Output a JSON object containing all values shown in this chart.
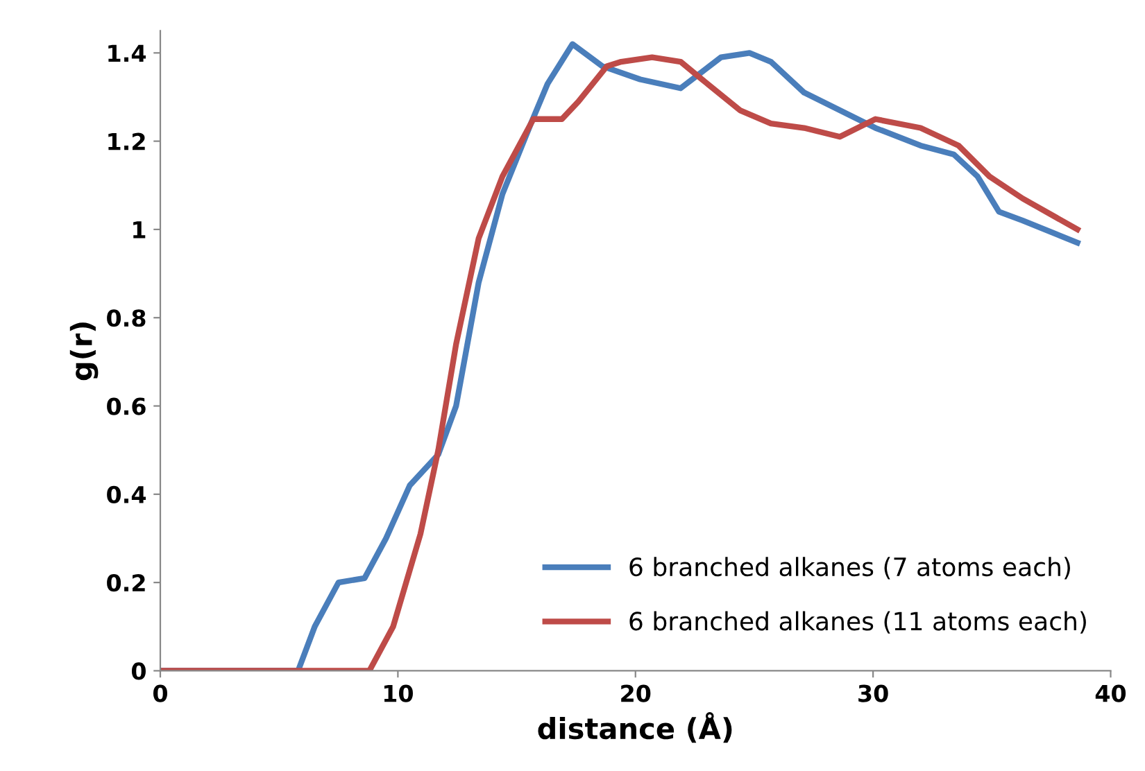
{
  "chart_data": {
    "type": "line",
    "xlabel": "distance (Å)",
    "ylabel": "g(r)",
    "xlim": [
      0,
      40
    ],
    "xticks": [
      0,
      10,
      20,
      30,
      40
    ],
    "ylim": [
      0,
      1.45
    ],
    "yticks": [
      0,
      0.2,
      0.4,
      0.6,
      0.8,
      1,
      1.2,
      1.4
    ],
    "grid": false,
    "legend": "bottom right",
    "marker": "none",
    "line_style": "solid",
    "series": [
      {
        "name": "6 branched alkanes (7 atoms each)",
        "color": "#4a7ebb",
        "x": [
          0,
          5.8,
          6.5,
          7.5,
          8.6,
          9.5,
          10.5,
          11.7,
          12.45,
          13.4,
          14.4,
          15.6,
          16.3,
          17.35,
          18.6,
          20.2,
          21.9,
          23.6,
          24.8,
          25.7,
          27.1,
          28.6,
          30.1,
          32.0,
          33.4,
          34.4,
          35.3,
          36.3,
          38.6
        ],
        "values": [
          0,
          0,
          0.1,
          0.2,
          0.21,
          0.3,
          0.42,
          0.49,
          0.6,
          0.88,
          1.08,
          1.24,
          1.33,
          1.42,
          1.37,
          1.34,
          1.32,
          1.39,
          1.4,
          1.38,
          1.31,
          1.27,
          1.23,
          1.19,
          1.17,
          1.12,
          1.04,
          1.02,
          0.97
        ]
      },
      {
        "name": "6 branched alkanes (11 atoms each)",
        "color": "#be4b48",
        "x": [
          0,
          8.8,
          9.8,
          10.95,
          11.7,
          12.45,
          13.4,
          14.4,
          15.7,
          16.9,
          17.6,
          18.8,
          19.4,
          20.7,
          21.9,
          22.8,
          24.4,
          25.7,
          27.1,
          28.6,
          30.1,
          32.0,
          33.6,
          34.9,
          36.3,
          38.6
        ],
        "values": [
          0,
          0,
          0.1,
          0.31,
          0.5,
          0.74,
          0.98,
          1.12,
          1.25,
          1.25,
          1.29,
          1.37,
          1.38,
          1.39,
          1.38,
          1.34,
          1.27,
          1.24,
          1.23,
          1.21,
          1.25,
          1.23,
          1.19,
          1.12,
          1.07,
          1.0
        ]
      }
    ]
  }
}
